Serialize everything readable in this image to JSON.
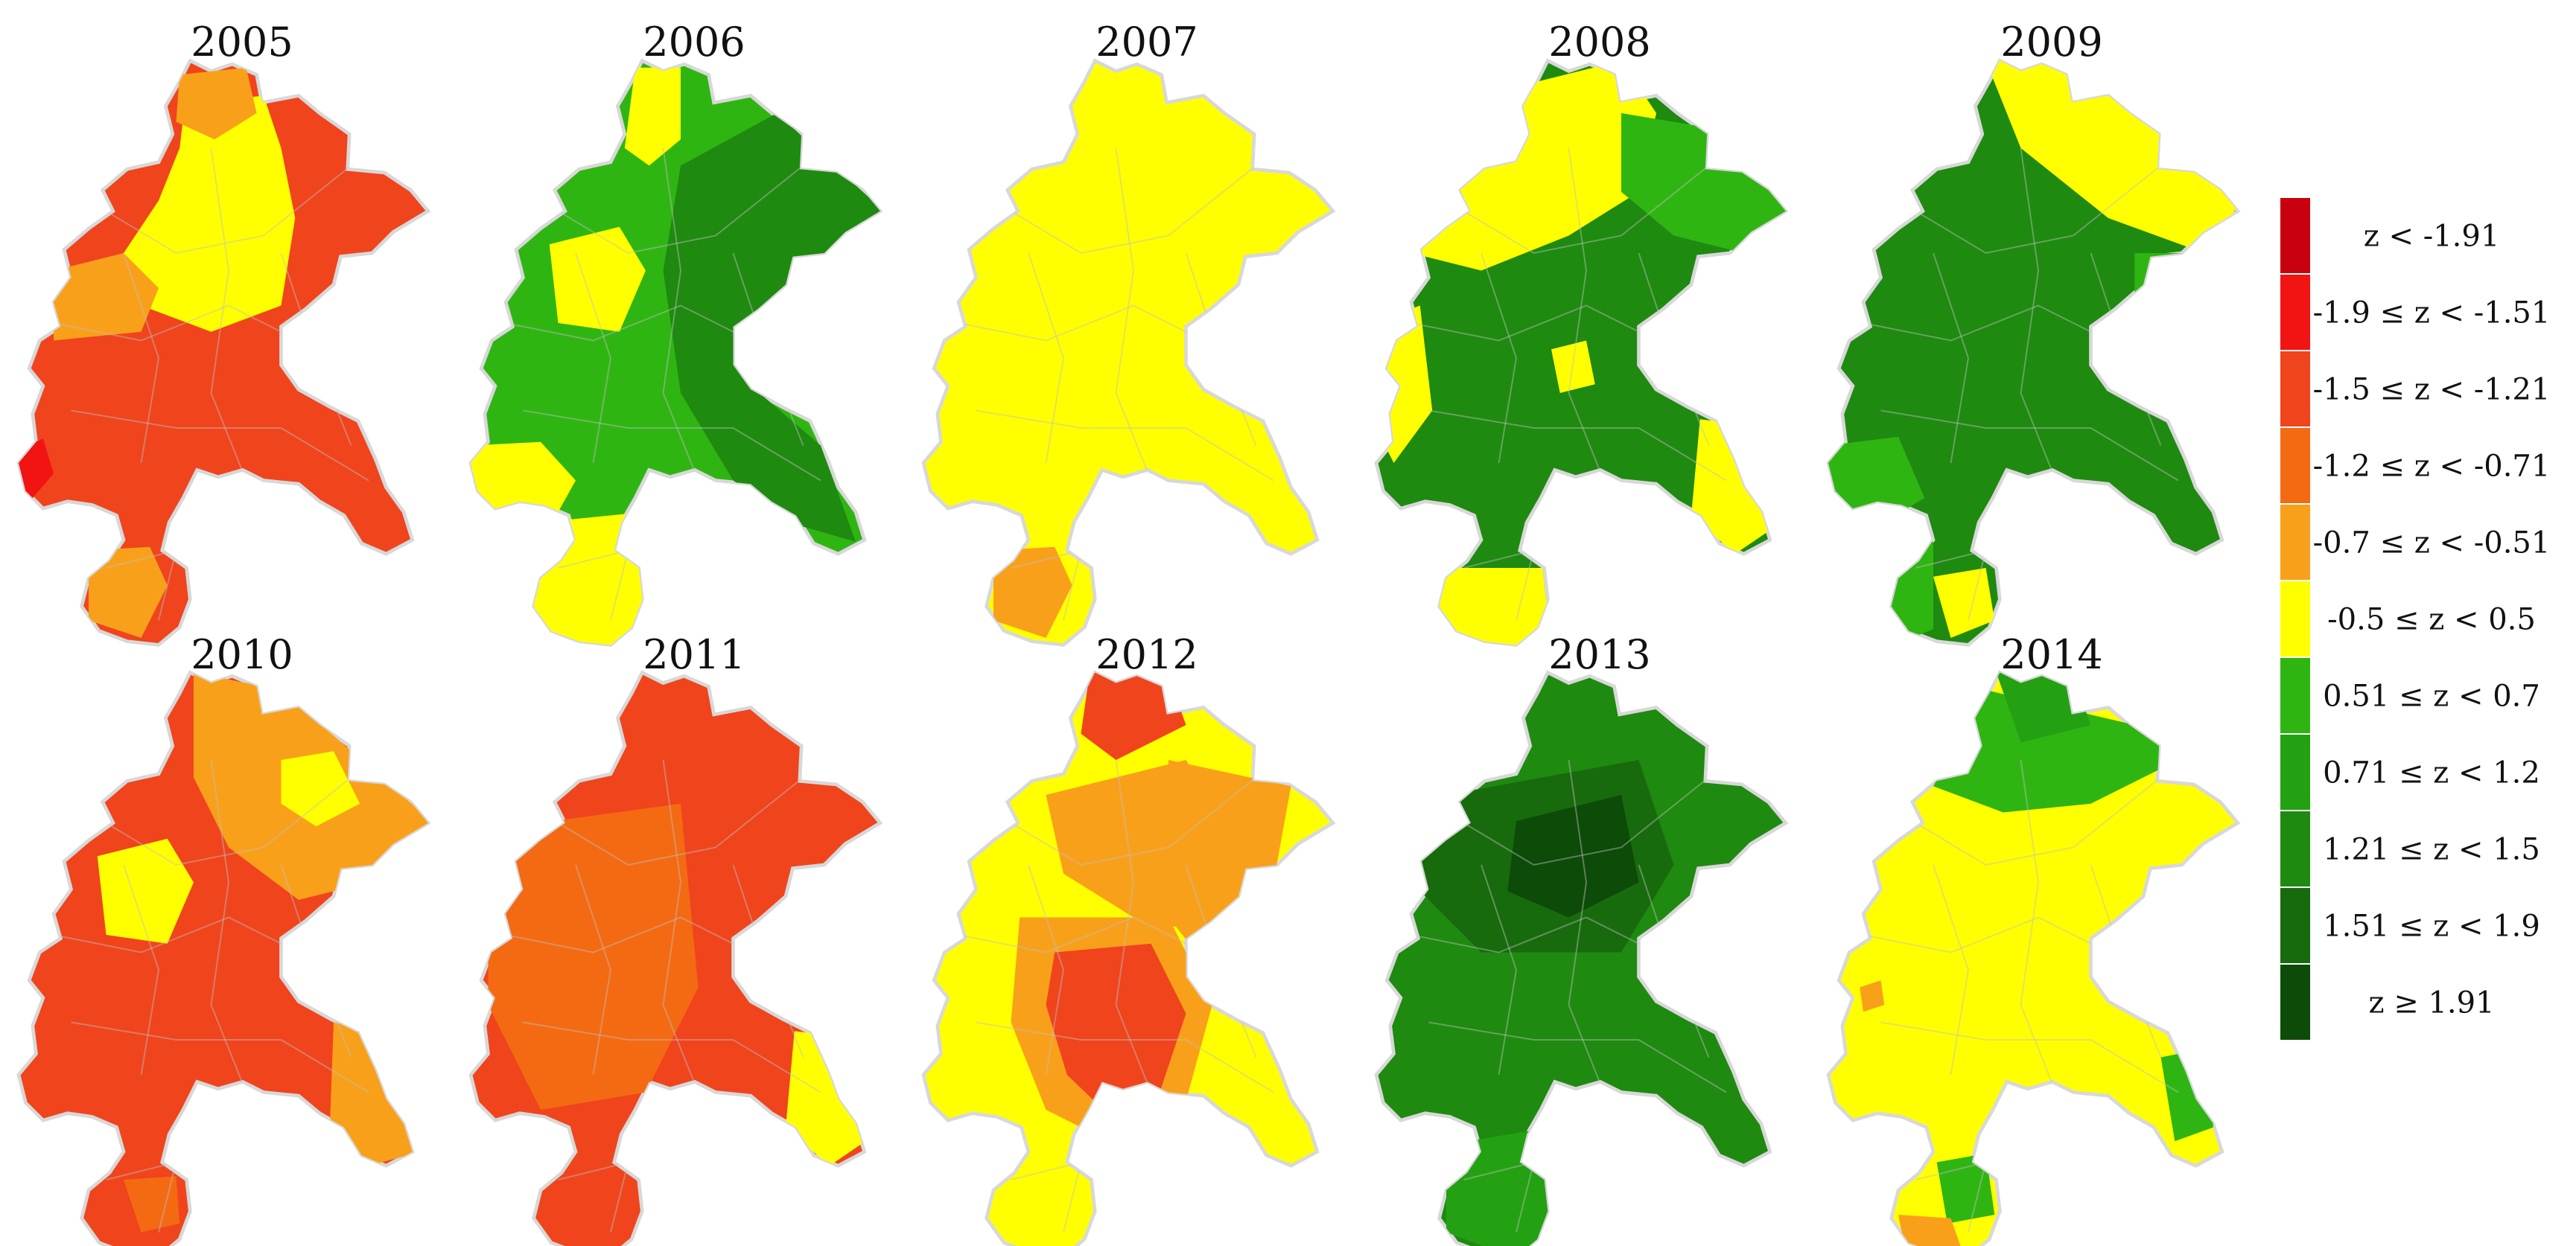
{
  "maps": [
    {
      "year": "2005",
      "base": "orange-red",
      "overlays": [
        {
          "name": "yellow-center-band",
          "color": "yellow"
        },
        {
          "name": "orange-left-band",
          "color": "orange"
        },
        {
          "name": "red-west-spot",
          "color": "red"
        },
        {
          "name": "orange-south-patch",
          "color": "orange"
        },
        {
          "name": "orange-north-patch",
          "color": "orange"
        }
      ]
    },
    {
      "year": "2006",
      "base": "green",
      "overlays": [
        {
          "name": "dark-green-east",
          "color": "dark-green"
        },
        {
          "name": "yellow-north-tip",
          "color": "yellow"
        },
        {
          "name": "yellow-west-pocket",
          "color": "yellow"
        },
        {
          "name": "yellow-west-arm",
          "color": "yellow"
        },
        {
          "name": "yellow-south-lobe",
          "color": "yellow"
        }
      ]
    },
    {
      "year": "2007",
      "base": "yellow",
      "overlays": [
        {
          "name": "orange-south-patch",
          "color": "orange"
        }
      ]
    },
    {
      "year": "2008",
      "base": "dark-green",
      "overlays": [
        {
          "name": "yellow-north",
          "color": "yellow"
        },
        {
          "name": "green-northeast",
          "color": "green"
        },
        {
          "name": "yellow-west-strip",
          "color": "yellow"
        },
        {
          "name": "yellow-east-lobe",
          "color": "yellow"
        },
        {
          "name": "yellow-south-band",
          "color": "yellow"
        },
        {
          "name": "yellow-center-spot",
          "color": "yellow"
        }
      ]
    },
    {
      "year": "2009",
      "base": "dark-green",
      "overlays": [
        {
          "name": "yellow-northeast",
          "color": "yellow"
        },
        {
          "name": "green-west",
          "color": "green"
        },
        {
          "name": "green-east",
          "color": "green"
        },
        {
          "name": "yellow-south-spot",
          "color": "yellow"
        },
        {
          "name": "green-south",
          "color": "green"
        }
      ]
    },
    {
      "year": "2010",
      "base": "orange-red",
      "overlays": [
        {
          "name": "orange-northeast",
          "color": "orange"
        },
        {
          "name": "yellow-west-pocket",
          "color": "yellow"
        },
        {
          "name": "yellow-north-spots",
          "color": "yellow"
        },
        {
          "name": "orange-east-lobe",
          "color": "orange"
        },
        {
          "name": "red-south-spot",
          "color": "red-orange"
        }
      ]
    },
    {
      "year": "2011",
      "base": "orange-red",
      "overlays": [
        {
          "name": "red-west-core",
          "color": "red"
        },
        {
          "name": "red-orange-ring",
          "color": "red-orange"
        },
        {
          "name": "yellow-east-lobe",
          "color": "yellow"
        }
      ]
    },
    {
      "year": "2012",
      "base": "yellow",
      "overlays": [
        {
          "name": "orange-center-ring",
          "color": "orange"
        },
        {
          "name": "red-orange-center",
          "color": "orange-red"
        },
        {
          "name": "orange-north",
          "color": "orange"
        },
        {
          "name": "red-orange-north-tip",
          "color": "orange-red"
        },
        {
          "name": "orange-northeast-band",
          "color": "orange"
        }
      ]
    },
    {
      "year": "2013",
      "base": "dark-green",
      "overlays": [
        {
          "name": "darker-green-center",
          "color": "darker-green"
        },
        {
          "name": "mid-green-south",
          "color": "mid-green"
        },
        {
          "name": "darkest-green-core",
          "color": "darkest-green"
        }
      ]
    },
    {
      "year": "2014",
      "base": "yellow",
      "overlays": [
        {
          "name": "green-north-band",
          "color": "green"
        },
        {
          "name": "mid-green-north-tip",
          "color": "mid-green"
        },
        {
          "name": "green-east-lobe",
          "color": "green"
        },
        {
          "name": "green-south-spot",
          "color": "green"
        },
        {
          "name": "orange-south-tip",
          "color": "orange"
        },
        {
          "name": "orange-west-spot",
          "color": "orange"
        }
      ]
    }
  ],
  "legend": {
    "items": [
      {
        "label": "z < -1.91",
        "color": "#C8000F"
      },
      {
        "label": "-1.9 ≤ z < -1.51",
        "color": "#F21313"
      },
      {
        "label": "-1.5 ≤ z < -1.21",
        "color": "#F0441D"
      },
      {
        "label": "-1.2 ≤ z < -0.71",
        "color": "#F46A12"
      },
      {
        "label": "-0.7 ≤ z < -0.51",
        "color": "#F9A01A"
      },
      {
        "label": "-0.5 ≤ z < 0.5",
        "color": "#FFFF00"
      },
      {
        "label": "0.51 ≤ z < 0.7",
        "color": "#2FB512"
      },
      {
        "label": "0.71 ≤ z < 1.2",
        "color": "#23A112"
      },
      {
        "label": "1.21 ≤ z < 1.5",
        "color": "#1E8A10"
      },
      {
        "label": "1.51 ≤ z < 1.9",
        "color": "#176B0D"
      },
      {
        "label": "z ≥ 1.91",
        "color": "#0D4B08"
      }
    ]
  },
  "colors": {
    "red": "#F21313",
    "orange-red": "#F0441D",
    "red-orange": "#F46A12",
    "orange": "#F9A01A",
    "yellow": "#FFFF00",
    "green": "#2FB512",
    "mid-green": "#23A112",
    "dark-green": "#1E8A10",
    "darker-green": "#176B0D",
    "darkest-green": "#0D4B08",
    "border": "#D8D8D8"
  }
}
